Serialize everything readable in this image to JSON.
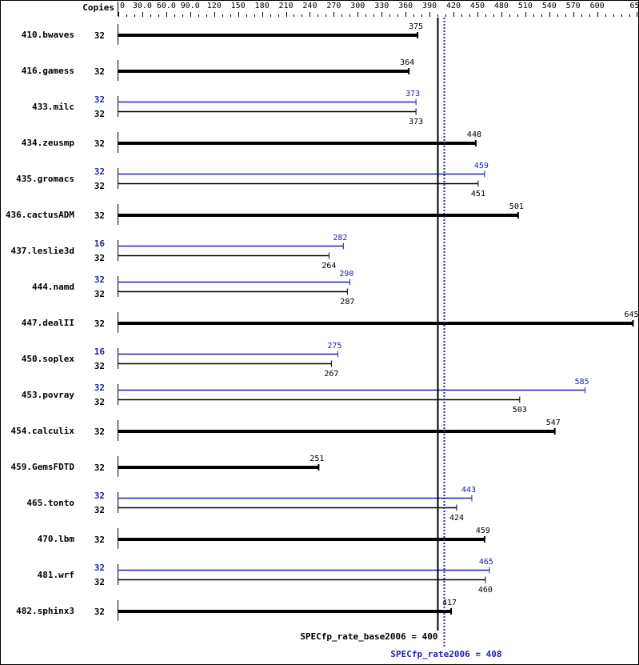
{
  "chart_data": {
    "type": "bar",
    "copies_header": "Copies",
    "xlim": [
      0,
      650
    ],
    "x_ticks": [
      "0",
      "30.0",
      "60.0",
      "90.0",
      "120",
      "150",
      "180",
      "210",
      "240",
      "270",
      "300",
      "330",
      "360",
      "390",
      "420",
      "450",
      "480",
      "510",
      "540",
      "570",
      "600",
      "650"
    ],
    "x_tick_values": [
      0,
      30,
      60,
      90,
      120,
      150,
      180,
      210,
      240,
      270,
      300,
      330,
      360,
      390,
      420,
      450,
      480,
      510,
      540,
      570,
      600,
      650
    ],
    "minor_tick_step": 10,
    "colors": {
      "base": "#000000",
      "peak": "#2020b0"
    },
    "benchmarks": [
      {
        "name": "410.bwaves",
        "base_copies": "32",
        "base": 375
      },
      {
        "name": "416.gamess",
        "base_copies": "32",
        "base": 364
      },
      {
        "name": "433.milc",
        "peak_copies": "32",
        "peak": 373,
        "base_copies": "32",
        "base": 373
      },
      {
        "name": "434.zeusmp",
        "base_copies": "32",
        "base": 448
      },
      {
        "name": "435.gromacs",
        "peak_copies": "32",
        "peak": 459,
        "base_copies": "32",
        "base": 451
      },
      {
        "name": "436.cactusADM",
        "base_copies": "32",
        "base": 501
      },
      {
        "name": "437.leslie3d",
        "peak_copies": "16",
        "peak": 282,
        "base_copies": "32",
        "base": 264
      },
      {
        "name": "444.namd",
        "peak_copies": "32",
        "peak": 290,
        "base_copies": "32",
        "base": 287
      },
      {
        "name": "447.dealII",
        "base_copies": "32",
        "base": 645
      },
      {
        "name": "450.soplex",
        "peak_copies": "16",
        "peak": 275,
        "base_copies": "32",
        "base": 267
      },
      {
        "name": "453.povray",
        "peak_copies": "32",
        "peak": 585,
        "base_copies": "32",
        "base": 503
      },
      {
        "name": "454.calculix",
        "base_copies": "32",
        "base": 547
      },
      {
        "name": "459.GemsFDTD",
        "base_copies": "32",
        "base": 251
      },
      {
        "name": "465.tonto",
        "peak_copies": "32",
        "peak": 443,
        "base_copies": "32",
        "base": 424
      },
      {
        "name": "470.lbm",
        "base_copies": "32",
        "base": 459
      },
      {
        "name": "481.wrf",
        "peak_copies": "32",
        "peak": 465,
        "base_copies": "32",
        "base": 460
      },
      {
        "name": "482.sphinx3",
        "base_copies": "32",
        "base": 417
      }
    ],
    "reference_lines": [
      {
        "label": "SPECfp_rate_base2006 = 400",
        "value": 400,
        "style": "solid",
        "color": "#000000"
      },
      {
        "label": "SPECfp_rate2006 = 408",
        "value": 408,
        "style": "dotted",
        "color": "#2020b0"
      }
    ]
  }
}
